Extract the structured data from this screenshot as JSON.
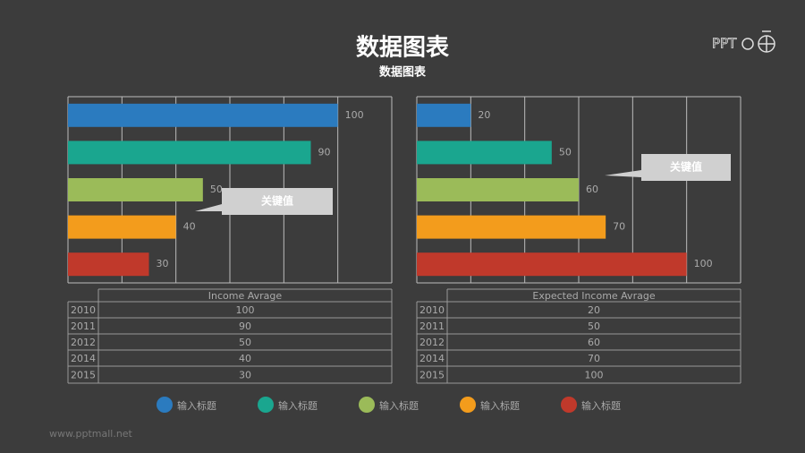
{
  "title": "数据图表",
  "subtitle": "数据图表",
  "logo": "PPT",
  "watermark": "www.pptmall.net",
  "legend": [
    "输入标题",
    "输入标题",
    "输入标题",
    "输入标题",
    "输入标题"
  ],
  "chart_data": [
    {
      "type": "bar",
      "orientation": "horizontal",
      "categories": [
        "2010",
        "2011",
        "2012",
        "2014",
        "2015"
      ],
      "values": [
        100,
        90,
        50,
        40,
        30
      ],
      "colors": [
        "#2b7bbf",
        "#1aa68f",
        "#9bbb59",
        "#f39c1c",
        "#c0392b"
      ],
      "xlim": [
        0,
        120
      ],
      "xticks": [
        0,
        20,
        40,
        60,
        80,
        100,
        120
      ],
      "grid": true,
      "annotation": "关键值",
      "table_title": "Income Avrage"
    },
    {
      "type": "bar",
      "orientation": "horizontal",
      "categories": [
        "2010",
        "2011",
        "2012",
        "2014",
        "2015"
      ],
      "values": [
        20,
        50,
        60,
        70,
        100
      ],
      "colors": [
        "#2b7bbf",
        "#1aa68f",
        "#9bbb59",
        "#f39c1c",
        "#c0392b"
      ],
      "xlim": [
        0,
        120
      ],
      "xticks": [
        0,
        20,
        40,
        60,
        80,
        100,
        120
      ],
      "grid": true,
      "annotation": "关键值",
      "table_title": "Expected Income Avrage"
    }
  ]
}
